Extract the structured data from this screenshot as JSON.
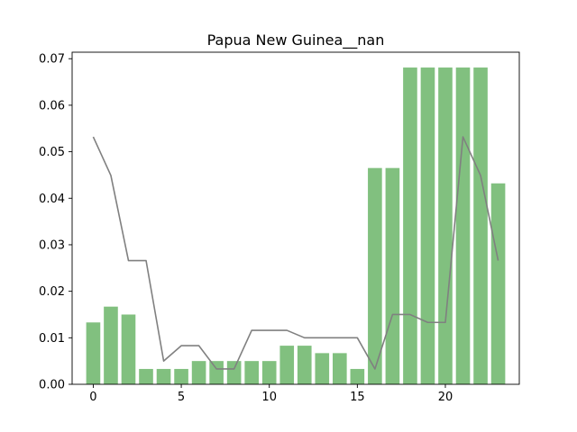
{
  "chart_data": {
    "type": "bar",
    "title": "Papua New Guinea__nan",
    "xlabel": "",
    "ylabel": "",
    "xlim": [
      -1.2,
      24.2
    ],
    "ylim": [
      0,
      0.0714
    ],
    "x_ticks": [
      0,
      5,
      10,
      15,
      20
    ],
    "y_ticks": [
      0.0,
      0.01,
      0.02,
      0.03,
      0.04,
      0.05,
      0.06,
      0.07
    ],
    "y_tick_format": 2,
    "grid": false,
    "legend": "none",
    "bar_color": "#81c07f",
    "line_color": "#808080",
    "x": [
      0,
      1,
      2,
      3,
      4,
      5,
      6,
      7,
      8,
      9,
      10,
      11,
      12,
      13,
      14,
      15,
      16,
      17,
      18,
      19,
      20,
      21,
      22,
      23
    ],
    "bar_values": [
      0.0133,
      0.0167,
      0.015,
      0.0033,
      0.0033,
      0.0033,
      0.005,
      0.005,
      0.005,
      0.005,
      0.005,
      0.0083,
      0.0083,
      0.0067,
      0.0067,
      0.0033,
      0.0465,
      0.0465,
      0.0681,
      0.0681,
      0.0681,
      0.0681,
      0.0681,
      0.0432
    ],
    "line_values": [
      0.0532,
      0.0449,
      0.0266,
      0.0266,
      0.005,
      0.0083,
      0.0083,
      0.0033,
      0.0033,
      0.0116,
      0.0116,
      0.0116,
      0.01,
      0.01,
      0.01,
      0.01,
      0.0033,
      0.015,
      0.015,
      0.0133,
      0.0133,
      0.0532,
      0.0449,
      0.0266
    ]
  }
}
